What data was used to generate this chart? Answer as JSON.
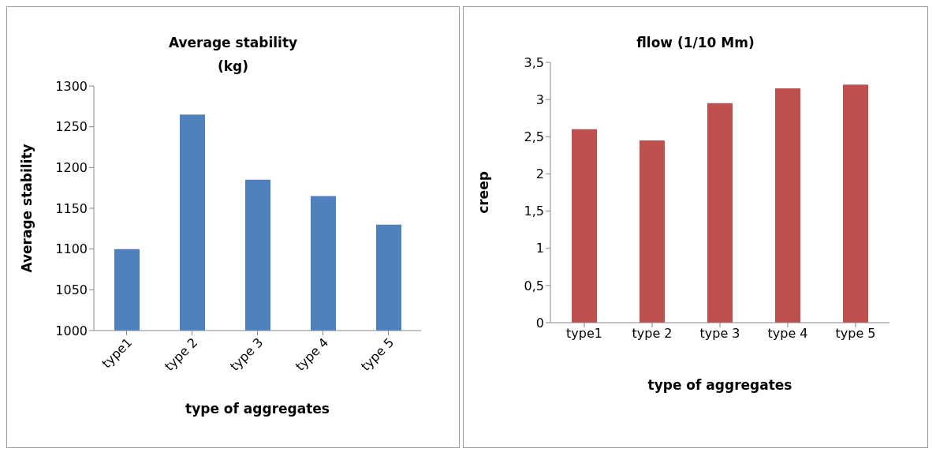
{
  "chart_data": [
    {
      "type": "bar",
      "title": "Average stability (kg)",
      "xlabel": "type of aggregates",
      "ylabel": "Average stability",
      "categories": [
        "type1",
        "type 2",
        "type 3",
        "type 4",
        "type 5"
      ],
      "values": [
        1100,
        1265,
        1185,
        1165,
        1130
      ],
      "color": "#4f81bd",
      "ylim": [
        1000,
        1300
      ],
      "yticks": [
        1000,
        1050,
        1100,
        1150,
        1200,
        1250,
        1300
      ],
      "grid": false
    },
    {
      "type": "bar",
      "title": "fllow (1/10 Mm)",
      "xlabel": "type of aggregates",
      "ylabel": "creep",
      "categories": [
        "type1",
        "type 2",
        "type 3",
        "type 4",
        "type 5"
      ],
      "values": [
        2.6,
        2.45,
        2.95,
        3.15,
        3.2
      ],
      "color": "#c0504d",
      "ylim": [
        0,
        3.5
      ],
      "yticks": [
        0,
        {
          "value": 0.5,
          "label": "0,5"
        },
        1,
        {
          "value": 1.5,
          "label": "1,5"
        },
        2,
        {
          "value": 2.5,
          "label": "2,5"
        },
        3,
        {
          "value": 3.5,
          "label": "3,5"
        }
      ],
      "grid": false
    }
  ]
}
